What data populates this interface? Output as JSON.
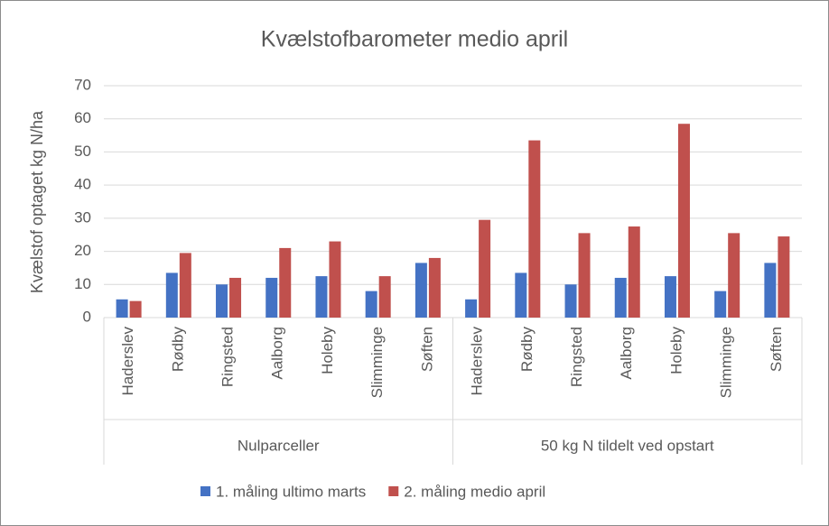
{
  "chart_data": {
    "type": "bar",
    "title": "Kvælstofbarometer medio april",
    "y_label": "Kvælstof optaget kg N/ha",
    "groups": [
      {
        "label": "Nulparceller",
        "categories": [
          "Haderslev",
          "Rødby",
          "Ringsted",
          "Aalborg",
          "Holeby",
          "Slimminge",
          "Søften"
        ]
      },
      {
        "label": "50 kg N tildelt ved opstart",
        "categories": [
          "Haderslev",
          "Rødby",
          "Ringsted",
          "Aalborg",
          "Holeby",
          "Slimminge",
          "Søften"
        ]
      }
    ],
    "series": [
      {
        "name": "1. måling ultimo marts",
        "color": "#4472c4",
        "values": [
          5.5,
          13.5,
          10,
          12,
          12.5,
          8,
          16.5,
          5.5,
          13.5,
          10,
          12,
          12.5,
          8,
          16.5
        ]
      },
      {
        "name": "2. måling medio april",
        "color": "#c0504d",
        "values": [
          5,
          19.5,
          12,
          21,
          23,
          12.5,
          18,
          29.5,
          53.5,
          25.5,
          27.5,
          58.5,
          25.5,
          24.5
        ]
      }
    ],
    "ylim": [
      0,
      70
    ],
    "yticks": [
      0,
      10,
      20,
      30,
      40,
      50,
      60,
      70
    ],
    "grid": true,
    "legend": "bottom"
  }
}
